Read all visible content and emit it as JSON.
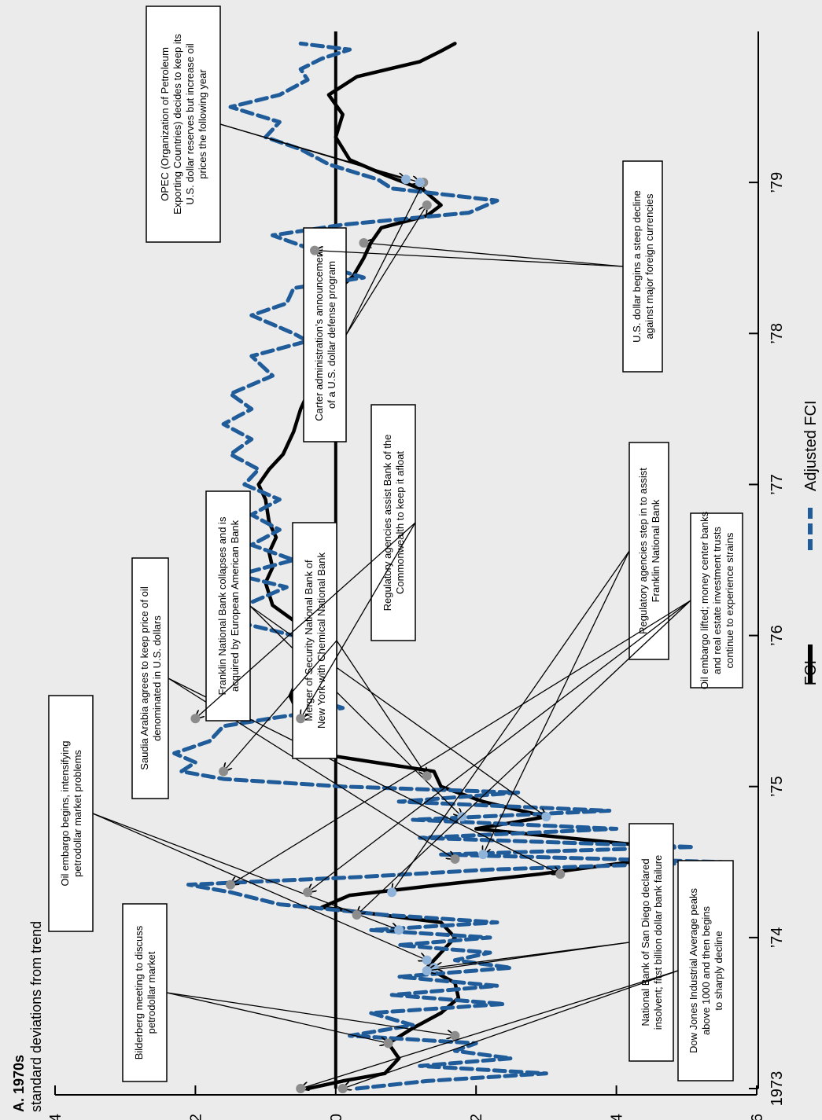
{
  "header": {
    "panel": "A. 1970s",
    "units": "standard deviations from trend"
  },
  "colors": {
    "fci": "#000000",
    "adjusted": "#1f5c99",
    "marker_fci": "#8c8c8c",
    "marker_adj": "#8fb3d9",
    "background": "#ebebeb"
  },
  "chart_data": {
    "type": "line",
    "orientation": "rotated 90 degrees (time runs left-to-right on the page, values run vertically as printed)",
    "x_axis": {
      "start": 1973.0,
      "end": 1979.9,
      "tick_labels": [
        "1973",
        "’74",
        "’75",
        "’76",
        "’77",
        "’78",
        "’79"
      ],
      "tick_values": [
        1973,
        1974,
        1975,
        1976,
        1977,
        1978,
        1979
      ]
    },
    "y_axis": {
      "range": [
        -4,
        6
      ],
      "tick_labels": [
        "−4",
        "−2",
        "0",
        "2",
        "4",
        "6"
      ],
      "tick_values": [
        -4,
        -2,
        0,
        2,
        4,
        6
      ]
    },
    "zero_line": 0,
    "series": [
      {
        "name": "FCI",
        "style": "solid",
        "points": [
          [
            1973.0,
            -0.4
          ],
          [
            1973.05,
            0.1
          ],
          [
            1973.1,
            0.7
          ],
          [
            1973.2,
            0.9
          ],
          [
            1973.3,
            0.75
          ],
          [
            1973.4,
            1.1
          ],
          [
            1973.5,
            1.5
          ],
          [
            1973.6,
            1.75
          ],
          [
            1973.7,
            1.7
          ],
          [
            1973.8,
            1.3
          ],
          [
            1973.9,
            1.5
          ],
          [
            1974.0,
            1.7
          ],
          [
            1974.1,
            1.5
          ],
          [
            1974.2,
            -0.2
          ],
          [
            1974.28,
            0.2
          ],
          [
            1974.35,
            1.5
          ],
          [
            1974.42,
            2.9
          ],
          [
            1974.5,
            4.2
          ],
          [
            1974.6,
            4.6
          ],
          [
            1974.72,
            2.0
          ],
          [
            1974.8,
            3.0
          ],
          [
            1974.9,
            2.1
          ],
          [
            1975.0,
            1.5
          ],
          [
            1975.1,
            1.4
          ],
          [
            1975.2,
            0.0
          ],
          [
            1975.3,
            -0.5
          ],
          [
            1975.38,
            -0.45
          ],
          [
            1975.5,
            -0.55
          ],
          [
            1975.6,
            -0.65
          ],
          [
            1975.7,
            -0.55
          ],
          [
            1975.8,
            -0.3
          ],
          [
            1975.9,
            -0.4
          ],
          [
            1976.0,
            -0.3
          ],
          [
            1976.1,
            -0.6
          ],
          [
            1976.2,
            -0.9
          ],
          [
            1976.35,
            -1.0
          ],
          [
            1976.45,
            -0.9
          ],
          [
            1976.55,
            -0.95
          ],
          [
            1976.65,
            -0.85
          ],
          [
            1976.75,
            -0.95
          ],
          [
            1976.9,
            -1.0
          ],
          [
            1977.0,
            -1.1
          ],
          [
            1977.1,
            -0.95
          ],
          [
            1977.2,
            -0.75
          ],
          [
            1977.35,
            -0.6
          ],
          [
            1977.5,
            -0.5
          ],
          [
            1977.65,
            -0.35
          ],
          [
            1977.8,
            -0.25
          ],
          [
            1977.9,
            -0.2
          ],
          [
            1978.0,
            -0.25
          ],
          [
            1978.1,
            -0.3
          ],
          [
            1978.2,
            -0.1
          ],
          [
            1978.28,
            0.0
          ],
          [
            1978.38,
            0.25
          ],
          [
            1978.5,
            0.4
          ],
          [
            1978.6,
            0.5
          ],
          [
            1978.7,
            0.65
          ],
          [
            1978.78,
            1.3
          ],
          [
            1978.85,
            1.5
          ],
          [
            1978.95,
            1.25
          ],
          [
            1979.05,
            0.7
          ],
          [
            1979.15,
            0.2
          ],
          [
            1979.3,
            0.0
          ],
          [
            1979.45,
            0.1
          ],
          [
            1979.58,
            -0.1
          ],
          [
            1979.7,
            0.3
          ],
          [
            1979.8,
            1.2
          ],
          [
            1979.87,
            1.5
          ],
          [
            1979.92,
            1.7
          ]
        ]
      },
      {
        "name": "Adjusted FCI",
        "style": "dashed",
        "points": [
          [
            1973.0,
            0.3
          ],
          [
            1973.05,
            1.3
          ],
          [
            1973.1,
            3.0
          ],
          [
            1973.15,
            1.2
          ],
          [
            1973.2,
            2.5
          ],
          [
            1973.25,
            1.7
          ],
          [
            1973.3,
            2.0
          ],
          [
            1973.35,
            0.2
          ],
          [
            1973.42,
            1.1
          ],
          [
            1973.5,
            0.5
          ],
          [
            1973.56,
            2.4
          ],
          [
            1973.62,
            0.8
          ],
          [
            1973.68,
            2.3
          ],
          [
            1973.74,
            0.9
          ],
          [
            1973.8,
            2.5
          ],
          [
            1973.85,
            1.7
          ],
          [
            1973.9,
            2.2
          ],
          [
            1973.95,
            0.9
          ],
          [
            1974.0,
            2.2
          ],
          [
            1974.05,
            0.5
          ],
          [
            1974.1,
            2.3
          ],
          [
            1974.15,
            0.7
          ],
          [
            1974.22,
            -0.8
          ],
          [
            1974.3,
            -1.5
          ],
          [
            1974.35,
            -2.1
          ],
          [
            1974.4,
            0.3
          ],
          [
            1974.45,
            2.2
          ],
          [
            1974.5,
            5.5
          ],
          [
            1974.55,
            1.5
          ],
          [
            1974.6,
            5.1
          ],
          [
            1974.66,
            1.2
          ],
          [
            1974.72,
            4.0
          ],
          [
            1974.78,
            1.1
          ],
          [
            1974.84,
            3.9
          ],
          [
            1974.9,
            0.9
          ],
          [
            1974.96,
            2.6
          ],
          [
            1975.0,
            0.1
          ],
          [
            1975.05,
            -1.6
          ],
          [
            1975.1,
            -2.2
          ],
          [
            1975.16,
            -2.0
          ],
          [
            1975.22,
            -2.3
          ],
          [
            1975.3,
            -1.8
          ],
          [
            1975.4,
            -1.6
          ],
          [
            1975.46,
            -0.8
          ],
          [
            1975.52,
            0.1
          ],
          [
            1975.58,
            -0.3
          ],
          [
            1975.65,
            -0.6
          ],
          [
            1975.72,
            -0.1
          ],
          [
            1975.8,
            -0.5
          ],
          [
            1975.9,
            -0.3
          ],
          [
            1976.0,
            -0.6
          ],
          [
            1976.1,
            -1.5
          ],
          [
            1976.2,
            -1.3
          ],
          [
            1976.32,
            -0.7
          ],
          [
            1976.4,
            -1.4
          ],
          [
            1976.5,
            -0.6
          ],
          [
            1976.6,
            -1.2
          ],
          [
            1976.7,
            -0.8
          ],
          [
            1976.8,
            -1.2
          ],
          [
            1976.9,
            -0.8
          ],
          [
            1977.0,
            -1.3
          ],
          [
            1977.1,
            -1.1
          ],
          [
            1977.2,
            -1.5
          ],
          [
            1977.3,
            -1.2
          ],
          [
            1977.4,
            -1.6
          ],
          [
            1977.5,
            -1.2
          ],
          [
            1977.6,
            -1.5
          ],
          [
            1977.72,
            -0.9
          ],
          [
            1977.85,
            -1.2
          ],
          [
            1977.95,
            -0.4
          ],
          [
            1978.0,
            -0.6
          ],
          [
            1978.12,
            -1.2
          ],
          [
            1978.2,
            -0.7
          ],
          [
            1978.3,
            -0.6
          ],
          [
            1978.37,
            0.4
          ],
          [
            1978.45,
            -0.2
          ],
          [
            1978.55,
            -0.3
          ],
          [
            1978.65,
            -0.9
          ],
          [
            1978.72,
            0.1
          ],
          [
            1978.8,
            1.9
          ],
          [
            1978.88,
            2.3
          ],
          [
            1978.96,
            0.8
          ],
          [
            1979.02,
            0.6
          ],
          [
            1979.12,
            -0.1
          ],
          [
            1979.22,
            -0.5
          ],
          [
            1979.3,
            -1.0
          ],
          [
            1979.4,
            -0.8
          ],
          [
            1979.5,
            -1.5
          ],
          [
            1979.58,
            -0.8
          ],
          [
            1979.68,
            -0.4
          ],
          [
            1979.75,
            -0.5
          ],
          [
            1979.82,
            -0.2
          ],
          [
            1979.88,
            0.2
          ],
          [
            1979.92,
            -0.5
          ]
        ]
      }
    ],
    "legend": {
      "items": [
        "FCI",
        "Adjusted FCI"
      ],
      "placement": "bottom"
    }
  },
  "annotations": [
    {
      "text": [
        "Bilderberg meeting to discuss",
        "petrodollar market"
      ],
      "points": [
        [
          1973.3,
          0.75
        ],
        [
          1973.35,
          1.7
        ]
      ]
    },
    {
      "text": [
        "Oil embargo begins, intensifying",
        "petrodollar market problems"
      ],
      "points": [
        [
          1973.85,
          1.3
        ],
        [
          1974.05,
          0.9
        ]
      ]
    },
    {
      "text": [
        "Saudia Arabia agrees to keep price of oil",
        "denominated in U.S. dollars"
      ],
      "points": [
        [
          1974.42,
          3.2
        ],
        [
          1974.52,
          1.7
        ]
      ]
    },
    {
      "text": [
        "Franklin National Bank collapses and is",
        "acquired by European American Bank"
      ],
      "points": [
        [
          1974.8,
          3.0
        ],
        [
          1974.8,
          1.8
        ]
      ]
    },
    {
      "text": [
        "Merger of Security National Bank of",
        "New York with Chemical National Bank"
      ],
      "points": [
        [
          1975.07,
          1.3
        ],
        [
          1975.1,
          -1.6
        ]
      ]
    },
    {
      "text": [
        "Regulatory agencies assist Bank of the",
        "Commonwealth to keep it afloat"
      ],
      "points": [
        [
          1975.45,
          -0.5
        ],
        [
          1975.45,
          -2.0
        ]
      ]
    },
    {
      "text": [
        "Carter administration’s announcement",
        "of a U.S. dollar defense program"
      ],
      "points": [
        [
          1978.85,
          1.3
        ],
        [
          1979.0,
          1.25
        ]
      ]
    },
    {
      "text": [
        "OPEC (Organization of Petroleum",
        "Exporting Countries) decides to keep its",
        "U.S. dollar reserves but increase oil",
        "prices the following year"
      ],
      "points": [
        [
          1979.0,
          1.2
        ],
        [
          1979.02,
          1.0
        ]
      ]
    },
    {
      "text": [
        "U.S. dollar begins a steep decline",
        "against major foreign currencies"
      ],
      "points": [
        [
          1978.55,
          -0.3
        ],
        [
          1978.6,
          0.4
        ]
      ]
    },
    {
      "text": [
        "Regulatory agencies step in to assist",
        "Franklin National Bank"
      ],
      "points": [
        [
          1974.55,
          2.1
        ],
        [
          1974.3,
          0.8
        ]
      ]
    },
    {
      "text": [
        "Oil embargo lifted; money center banks",
        "and real estate investment trusts",
        "continue to experience strains"
      ],
      "points": [
        [
          1974.15,
          0.3
        ],
        [
          1974.3,
          -0.4
        ],
        [
          1974.35,
          -1.5
        ]
      ]
    },
    {
      "text": [
        "National Bank of San Diego declared",
        "insolvent; first billion dollar bank failure"
      ],
      "points": [
        [
          1973.8,
          1.4
        ],
        [
          1973.78,
          1.3
        ]
      ]
    },
    {
      "text": [
        "Dow Jones Industrial Average peaks",
        "above 1000 and then begins",
        "to sharply decline"
      ],
      "points": [
        [
          1973.0,
          -0.5
        ],
        [
          1973.0,
          0.1
        ]
      ]
    }
  ]
}
